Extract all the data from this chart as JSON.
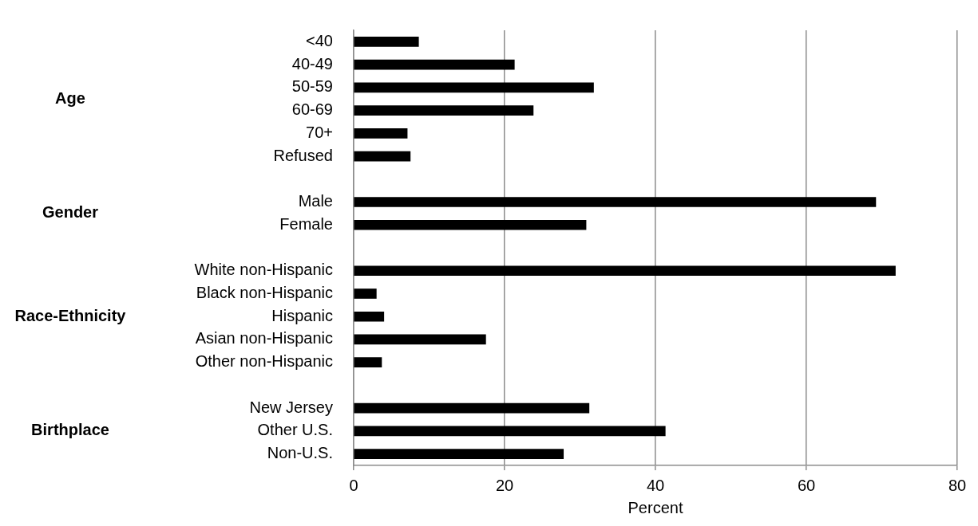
{
  "chart_data": {
    "type": "bar",
    "orientation": "horizontal",
    "xlabel": "Percent",
    "categories": [
      "<40",
      "40-49",
      "50-59",
      "60-69",
      "70+",
      "Refused",
      null,
      "Male",
      "Female",
      null,
      "White non-Hispanic",
      "Black non-Hispanic",
      "Hispanic",
      "Asian non-Hispanic",
      "Other non-Hispanic",
      null,
      "New Jersey",
      "Other U.S.",
      "Non-U.S."
    ],
    "values": [
      8.6,
      21.3,
      31.8,
      23.8,
      7.1,
      7.5,
      null,
      69.2,
      30.8,
      null,
      71.8,
      3.0,
      4.0,
      17.5,
      3.7,
      null,
      31.2,
      41.3,
      27.8
    ],
    "color": "#000000",
    "xlim": [
      0,
      80
    ],
    "xticks": [
      0,
      20,
      40,
      60,
      80
    ],
    "grid": "x",
    "legend": false,
    "annotations": [
      "Age",
      "Gender",
      "Race-Ethnicity",
      "Birthplace"
    ]
  }
}
